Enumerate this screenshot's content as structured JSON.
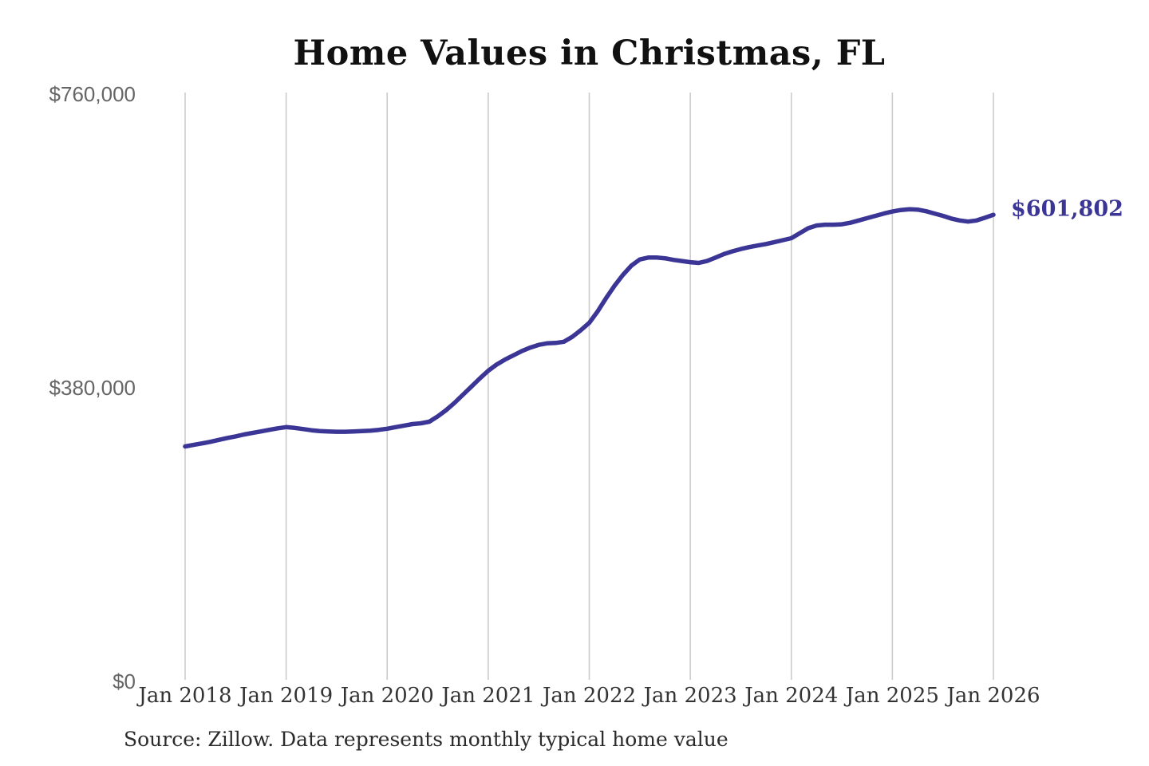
{
  "chart_data": {
    "type": "line",
    "title": "Home Values in Christmas, FL",
    "source_note": "Source: Zillow. Data represents monthly typical home value",
    "legend": "none",
    "grid": "vertical-only",
    "ylim": [
      0,
      760000
    ],
    "y_ticks": [
      {
        "label": "$760,000",
        "value": 760000
      },
      {
        "label": "$380,000",
        "value": 380000
      },
      {
        "label": "$0",
        "value": 0
      }
    ],
    "x_labels": [
      "Jan 2018",
      "Jan 2019",
      "Jan 2020",
      "Jan 2021",
      "Jan 2022",
      "Jan 2023",
      "Jan 2024",
      "Jan 2025",
      "Jan 2026"
    ],
    "end_label": "$601,802",
    "end_value": 601802,
    "colors": {
      "line": "#3b3596",
      "grid": "#cbcbcb",
      "title": "#111111",
      "x_labels": "#333333",
      "y_labels": "#666666",
      "end_label": "#3b3596",
      "source": "#2b2b2b",
      "background": "#ffffff"
    },
    "series": [
      {
        "name": "Typical home value (monthly)",
        "months": [
          "Jan 2018",
          "Feb 2018",
          "Mar 2018",
          "Apr 2018",
          "May 2018",
          "Jun 2018",
          "Jul 2018",
          "Aug 2018",
          "Sep 2018",
          "Oct 2018",
          "Nov 2018",
          "Dec 2018",
          "Jan 2019",
          "Feb 2019",
          "Mar 2019",
          "Apr 2019",
          "May 2019",
          "Jun 2019",
          "Jul 2019",
          "Aug 2019",
          "Sep 2019",
          "Oct 2019",
          "Nov 2019",
          "Dec 2019",
          "Jan 2020",
          "Feb 2020",
          "Mar 2020",
          "Apr 2020",
          "May 2020",
          "Jun 2020",
          "Jul 2020",
          "Aug 2020",
          "Sep 2020",
          "Oct 2020",
          "Nov 2020",
          "Dec 2020",
          "Jan 2021",
          "Feb 2021",
          "Mar 2021",
          "Apr 2021",
          "May 2021",
          "Jun 2021",
          "Jul 2021",
          "Aug 2021",
          "Sep 2021",
          "Oct 2021",
          "Nov 2021",
          "Dec 2021",
          "Jan 2022",
          "Feb 2022",
          "Mar 2022",
          "Apr 2022",
          "May 2022",
          "Jun 2022",
          "Jul 2022",
          "Aug 2022",
          "Sep 2022",
          "Oct 2022",
          "Nov 2022",
          "Dec 2022",
          "Jan 2023",
          "Feb 2023",
          "Mar 2023",
          "Apr 2023",
          "May 2023",
          "Jun 2023",
          "Jul 2023",
          "Aug 2023",
          "Sep 2023",
          "Oct 2023",
          "Nov 2023",
          "Dec 2023",
          "Jan 2024",
          "Feb 2024",
          "Mar 2024",
          "Apr 2024",
          "May 2024",
          "Jun 2024",
          "Jul 2024",
          "Aug 2024",
          "Sep 2024",
          "Oct 2024",
          "Nov 2024",
          "Dec 2024",
          "Jan 2025",
          "Feb 2025",
          "Mar 2025",
          "Apr 2025",
          "May 2025",
          "Jun 2025",
          "Jul 2025",
          "Aug 2025",
          "Sep 2025",
          "Oct 2025",
          "Nov 2025",
          "Dec 2025",
          "Jan 2026"
        ],
        "values": [
          302000,
          304000,
          306000,
          308000,
          310500,
          313000,
          315000,
          317500,
          319500,
          321500,
          323500,
          325500,
          327000,
          326000,
          324500,
          323000,
          322000,
          321500,
          321000,
          321000,
          321500,
          322000,
          322500,
          323500,
          325000,
          327000,
          329000,
          331000,
          332000,
          334000,
          341000,
          349000,
          358500,
          369000,
          379500,
          390000,
          400000,
          408000,
          414500,
          420000,
          425500,
          430000,
          433500,
          435500,
          436000,
          437500,
          444000,
          452500,
          462000,
          477000,
          494000,
          510000,
          524000,
          536000,
          544000,
          546500,
          546500,
          545500,
          543500,
          542000,
          540500,
          539500,
          542000,
          546500,
          551000,
          554500,
          557500,
          560000,
          562000,
          564000,
          566500,
          569000,
          571500,
          578000,
          584500,
          588000,
          589000,
          589000,
          589500,
          591500,
          594500,
          597500,
          600500,
          603500,
          606000,
          608000,
          609000,
          608500,
          606500,
          603500,
          600500,
          597000,
          594500,
          593000,
          594500,
          598000,
          601802
        ]
      }
    ]
  }
}
